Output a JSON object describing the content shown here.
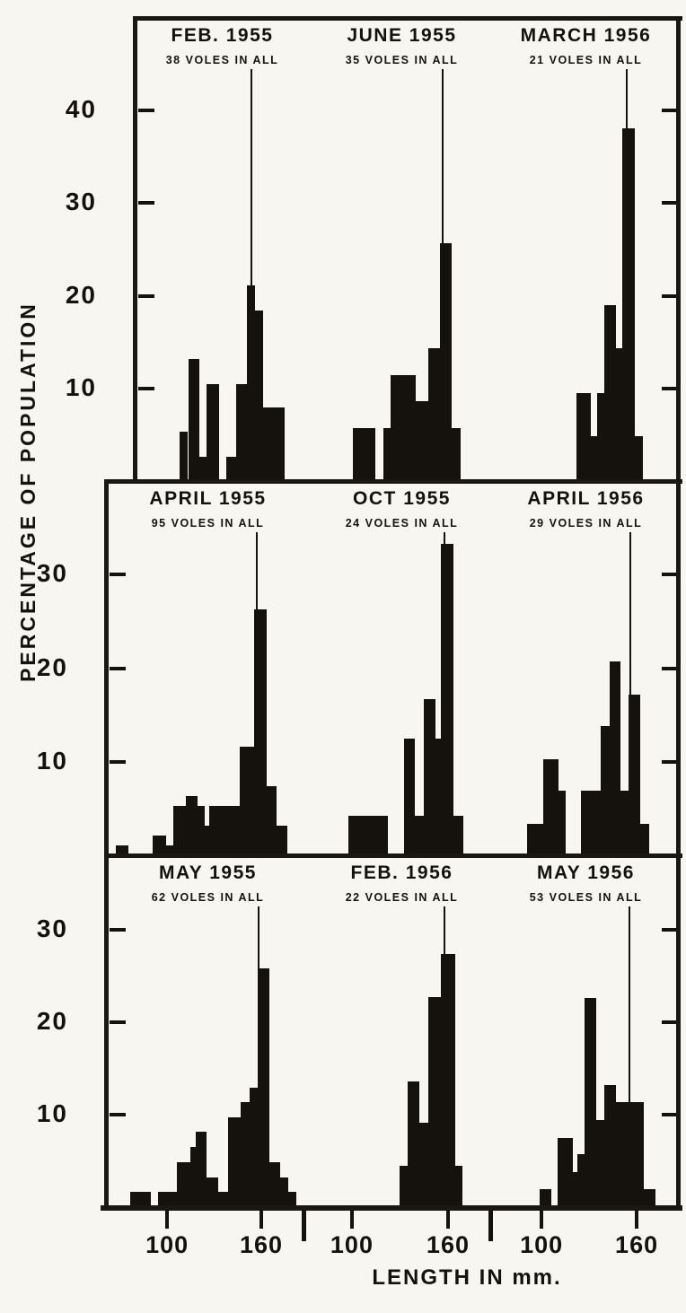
{
  "figure": {
    "y_axis_label": "PERCENTAGE OF POPULATION",
    "x_axis_label": "LENGTH IN mm.",
    "ink_color": "#15120e",
    "paper_color": "#f7f6f1"
  },
  "chart_data": {
    "type": "bar",
    "subtype": "histogram-grid",
    "x_unit": "mm",
    "y_unit": "percent of population",
    "x_tick_labels": [
      "100",
      "160"
    ],
    "grid": "off",
    "rows": [
      {
        "y_ticks": [
          10,
          20,
          30,
          40
        ],
        "y_max": 50,
        "panels": [
          {
            "title": "FEB. 1955",
            "subtitle": "38 VOLES IN ALL",
            "n_voles": 38,
            "ref_line_frac": 0.667,
            "bars": [
              {
                "f": 0.256,
                "w": 0.046,
                "v": 5.3,
                "mm": [
                  108,
                  113
                ]
              },
              {
                "f": 0.308,
                "w": 0.062,
                "v": 13.2,
                "mm": [
                  113,
                  121
                ]
              },
              {
                "f": 0.369,
                "w": 0.041,
                "v": 2.6,
                "mm": [
                  121,
                  125
                ]
              },
              {
                "f": 0.41,
                "w": 0.072,
                "v": 10.5,
                "mm": [
                  125,
                  133
                ]
              },
              {
                "f": 0.523,
                "w": 0.056,
                "v": 2.6,
                "mm": [
                  138,
                  143
                ]
              },
              {
                "f": 0.579,
                "w": 0.062,
                "v": 10.5,
                "mm": [
                  143,
                  150
                ]
              },
              {
                "f": 0.641,
                "w": 0.046,
                "v": 21.1,
                "mm": [
                  150,
                  155
                ]
              },
              {
                "f": 0.687,
                "w": 0.046,
                "v": 18.4,
                "mm": [
                  155,
                  161
                ]
              },
              {
                "f": 0.733,
                "w": 0.123,
                "v": 7.9,
                "mm": [
                  161,
                  175
                ]
              }
            ]
          },
          {
            "title": "JUNE 1955",
            "subtitle": "35 VOLES IN ALL",
            "n_voles": 35,
            "ref_line_frac": 0.72,
            "bars": [
              {
                "f": 0.234,
                "w": 0.122,
                "v": 5.7,
                "mm": [
                  101,
                  115
                ]
              },
              {
                "f": 0.4,
                "w": 0.039,
                "v": 5.7,
                "mm": [
                  120,
                  124
                ]
              },
              {
                "f": 0.439,
                "w": 0.137,
                "v": 11.4,
                "mm": [
                  124,
                  140
                ]
              },
              {
                "f": 0.576,
                "w": 0.068,
                "v": 8.6,
                "mm": [
                  140,
                  148
                ]
              },
              {
                "f": 0.644,
                "w": 0.063,
                "v": 14.3,
                "mm": [
                  148,
                  155
                ]
              },
              {
                "f": 0.707,
                "w": 0.063,
                "v": 25.7,
                "mm": [
                  155,
                  162
                ]
              },
              {
                "f": 0.77,
                "w": 0.049,
                "v": 5.7,
                "mm": [
                  162,
                  168
                ]
              }
            ]
          },
          {
            "title": "MARCH 1956",
            "subtitle": "21 VOLES IN ALL",
            "n_voles": 21,
            "ref_line_frac": 0.72,
            "bars": [
              {
                "f": 0.449,
                "w": 0.078,
                "v": 9.5,
                "mm": [
                  122,
                  131
                ]
              },
              {
                "f": 0.527,
                "w": 0.034,
                "v": 4.8,
                "mm": [
                  131,
                  135
                ]
              },
              {
                "f": 0.561,
                "w": 0.039,
                "v": 9.5,
                "mm": [
                  135,
                  140
                ]
              },
              {
                "f": 0.6,
                "w": 0.063,
                "v": 19.0,
                "mm": [
                  140,
                  147
                ]
              },
              {
                "f": 0.663,
                "w": 0.034,
                "v": 14.3,
                "mm": [
                  147,
                  151
                ]
              },
              {
                "f": 0.697,
                "w": 0.069,
                "v": 38.1,
                "mm": [
                  151,
                  159
                ]
              },
              {
                "f": 0.766,
                "w": 0.044,
                "v": 4.8,
                "mm": [
                  159,
                  164
                ]
              }
            ]
          }
        ]
      },
      {
        "y_ticks": [
          10,
          20,
          30
        ],
        "y_max": 40,
        "panels": [
          {
            "title": "APRIL 1955",
            "subtitle": "95 VOLES IN ALL",
            "n_voles": 95,
            "ref_line_frac": 0.74,
            "bars": [
              {
                "f": 0.048,
                "w": 0.062,
                "v": 1.1,
                "mm": [
                  67,
                  75
                ]
              },
              {
                "f": 0.229,
                "w": 0.066,
                "v": 2.1,
                "mm": [
                  91,
                  99
                ]
              },
              {
                "f": 0.295,
                "w": 0.035,
                "v": 1.1,
                "mm": [
                  99,
                  104
                ]
              },
              {
                "f": 0.33,
                "w": 0.062,
                "v": 5.3,
                "mm": [
                  104,
                  112
                ]
              },
              {
                "f": 0.392,
                "w": 0.057,
                "v": 6.3,
                "mm": [
                  112,
                  119
                ]
              },
              {
                "f": 0.449,
                "w": 0.035,
                "v": 5.3,
                "mm": [
                  119,
                  124
                ]
              },
              {
                "f": 0.484,
                "w": 0.022,
                "v": 3.2,
                "mm": [
                  124,
                  127
                ]
              },
              {
                "f": 0.506,
                "w": 0.15,
                "v": 5.3,
                "mm": [
                  127,
                  146
                ]
              },
              {
                "f": 0.656,
                "w": 0.07,
                "v": 11.6,
                "mm": [
                  146,
                  155
                ]
              },
              {
                "f": 0.726,
                "w": 0.062,
                "v": 26.3,
                "mm": [
                  155,
                  163
                ]
              },
              {
                "f": 0.788,
                "w": 0.048,
                "v": 7.4,
                "mm": [
                  163,
                  170
                ]
              },
              {
                "f": 0.836,
                "w": 0.053,
                "v": 3.2,
                "mm": [
                  170,
                  177
                ]
              }
            ]
          },
          {
            "title": "OCT 1955",
            "subtitle": "24 VOLES IN ALL",
            "n_voles": 24,
            "ref_line_frac": 0.73,
            "bars": [
              {
                "f": 0.21,
                "w": 0.215,
                "v": 4.2,
                "mm": [
                  98,
                  122
                ]
              },
              {
                "f": 0.512,
                "w": 0.059,
                "v": 12.5,
                "mm": [
                  133,
                  139
                ]
              },
              {
                "f": 0.571,
                "w": 0.049,
                "v": 4.2,
                "mm": [
                  139,
                  145
                ]
              },
              {
                "f": 0.62,
                "w": 0.063,
                "v": 16.7,
                "mm": [
                  145,
                  152
                ]
              },
              {
                "f": 0.683,
                "w": 0.029,
                "v": 12.5,
                "mm": [
                  152,
                  156
                ]
              },
              {
                "f": 0.712,
                "w": 0.068,
                "v": 33.3,
                "mm": [
                  156,
                  163
                ]
              },
              {
                "f": 0.78,
                "w": 0.054,
                "v": 4.2,
                "mm": [
                  163,
                  170
                ]
              }
            ]
          },
          {
            "title": "APRIL 1956",
            "subtitle": "29 VOLES IN ALL",
            "n_voles": 29,
            "ref_line_frac": 0.74,
            "bars": [
              {
                "f": 0.18,
                "w": 0.088,
                "v": 3.4,
                "mm": [
                  91,
                  101
                ]
              },
              {
                "f": 0.268,
                "w": 0.083,
                "v": 10.3,
                "mm": [
                  101,
                  111
                ]
              },
              {
                "f": 0.351,
                "w": 0.039,
                "v": 6.9,
                "mm": [
                  111,
                  115
                ]
              },
              {
                "f": 0.473,
                "w": 0.107,
                "v": 6.9,
                "mm": [
                  125,
                  137
                ]
              },
              {
                "f": 0.58,
                "w": 0.049,
                "v": 13.8,
                "mm": [
                  137,
                  143
                ]
              },
              {
                "f": 0.629,
                "w": 0.059,
                "v": 20.7,
                "mm": [
                  143,
                  150
                ]
              },
              {
                "f": 0.688,
                "w": 0.044,
                "v": 6.9,
                "mm": [
                  150,
                  155
                ]
              },
              {
                "f": 0.732,
                "w": 0.063,
                "v": 17.2,
                "mm": [
                  155,
                  162
                ]
              },
              {
                "f": 0.795,
                "w": 0.049,
                "v": 3.4,
                "mm": [
                  162,
                  168
                ]
              }
            ]
          }
        ]
      },
      {
        "y_ticks": [
          10,
          20,
          30
        ],
        "y_max": 38,
        "panels": [
          {
            "title": "MAY 1955",
            "subtitle": "62 VOLES IN ALL",
            "n_voles": 62,
            "ref_line_frac": 0.75,
            "bars": [
              {
                "f": 0.119,
                "w": 0.101,
                "v": 1.6,
                "mm": [
                  77,
                  90
                ]
              },
              {
                "f": 0.256,
                "w": 0.092,
                "v": 1.6,
                "mm": [
                  94,
                  106
                ]
              },
              {
                "f": 0.348,
                "w": 0.066,
                "v": 4.8,
                "mm": [
                  106,
                  115
                ]
              },
              {
                "f": 0.414,
                "w": 0.026,
                "v": 6.5,
                "mm": [
                  115,
                  118
                ]
              },
              {
                "f": 0.44,
                "w": 0.053,
                "v": 8.1,
                "mm": [
                  118,
                  125
                ]
              },
              {
                "f": 0.493,
                "w": 0.057,
                "v": 3.2,
                "mm": [
                  125,
                  133
                ]
              },
              {
                "f": 0.55,
                "w": 0.048,
                "v": 1.6,
                "mm": [
                  133,
                  139
                ]
              },
              {
                "f": 0.599,
                "w": 0.062,
                "v": 9.7,
                "mm": [
                  139,
                  147
                ]
              },
              {
                "f": 0.661,
                "w": 0.044,
                "v": 11.3,
                "mm": [
                  147,
                  153
                ]
              },
              {
                "f": 0.705,
                "w": 0.04,
                "v": 12.9,
                "mm": [
                  153,
                  158
                ]
              },
              {
                "f": 0.744,
                "w": 0.057,
                "v": 25.8,
                "mm": [
                  158,
                  165
                ]
              },
              {
                "f": 0.802,
                "w": 0.053,
                "v": 4.8,
                "mm": [
                  165,
                  172
                ]
              },
              {
                "f": 0.855,
                "w": 0.04,
                "v": 3.2,
                "mm": [
                  172,
                  177
                ]
              },
              {
                "f": 0.894,
                "w": 0.04,
                "v": 1.6,
                "mm": [
                  177,
                  182
                ]
              }
            ]
          },
          {
            "title": "FEB. 1956",
            "subtitle": "22 VOLES IN ALL",
            "n_voles": 22,
            "ref_line_frac": 0.73,
            "bars": [
              {
                "f": 0.488,
                "w": 0.044,
                "v": 4.5,
                "mm": [
                  130,
                  135
                ]
              },
              {
                "f": 0.532,
                "w": 0.063,
                "v": 13.6,
                "mm": [
                  135,
                  142
                ]
              },
              {
                "f": 0.595,
                "w": 0.049,
                "v": 9.1,
                "mm": [
                  142,
                  148
                ]
              },
              {
                "f": 0.644,
                "w": 0.068,
                "v": 22.7,
                "mm": [
                  148,
                  156
                ]
              },
              {
                "f": 0.712,
                "w": 0.078,
                "v": 27.3,
                "mm": [
                  156,
                  165
                ]
              },
              {
                "f": 0.79,
                "w": 0.039,
                "v": 4.5,
                "mm": [
                  165,
                  169
                ]
              }
            ]
          },
          {
            "title": "MAY 1956",
            "subtitle": "53 VOLES IN ALL",
            "n_voles": 53,
            "ref_line_frac": 0.737,
            "bars": [
              {
                "f": 0.249,
                "w": 0.063,
                "v": 1.9,
                "mm": [
                  99,
                  106
                ]
              },
              {
                "f": 0.346,
                "w": 0.083,
                "v": 7.5,
                "mm": [
                  110,
                  120
                ]
              },
              {
                "f": 0.429,
                "w": 0.024,
                "v": 3.8,
                "mm": [
                  120,
                  123
                ]
              },
              {
                "f": 0.453,
                "w": 0.039,
                "v": 5.7,
                "mm": [
                  123,
                  127
                ]
              },
              {
                "f": 0.492,
                "w": 0.064,
                "v": 22.6,
                "mm": [
                  127,
                  135
                ]
              },
              {
                "f": 0.556,
                "w": 0.044,
                "v": 9.4,
                "mm": [
                  135,
                  140
                ]
              },
              {
                "f": 0.6,
                "w": 0.063,
                "v": 13.2,
                "mm": [
                  140,
                  147
                ]
              },
              {
                "f": 0.663,
                "w": 0.151,
                "v": 11.3,
                "mm": [
                  147,
                  165
                ]
              },
              {
                "f": 0.814,
                "w": 0.063,
                "v": 1.9,
                "mm": [
                  165,
                  172
                ]
              }
            ]
          }
        ]
      }
    ],
    "x_axis_columns": [
      {
        "ticks": [
          {
            "label": "100",
            "f": 0.3
          },
          {
            "label": "160",
            "f": 0.762
          }
        ]
      },
      {
        "ticks": [
          {
            "label": "100",
            "f": 0.229
          },
          {
            "label": "160",
            "f": 0.751
          }
        ]
      },
      {
        "ticks": [
          {
            "label": "100",
            "f": 0.259
          },
          {
            "label": "160",
            "f": 0.776
          }
        ]
      }
    ]
  }
}
